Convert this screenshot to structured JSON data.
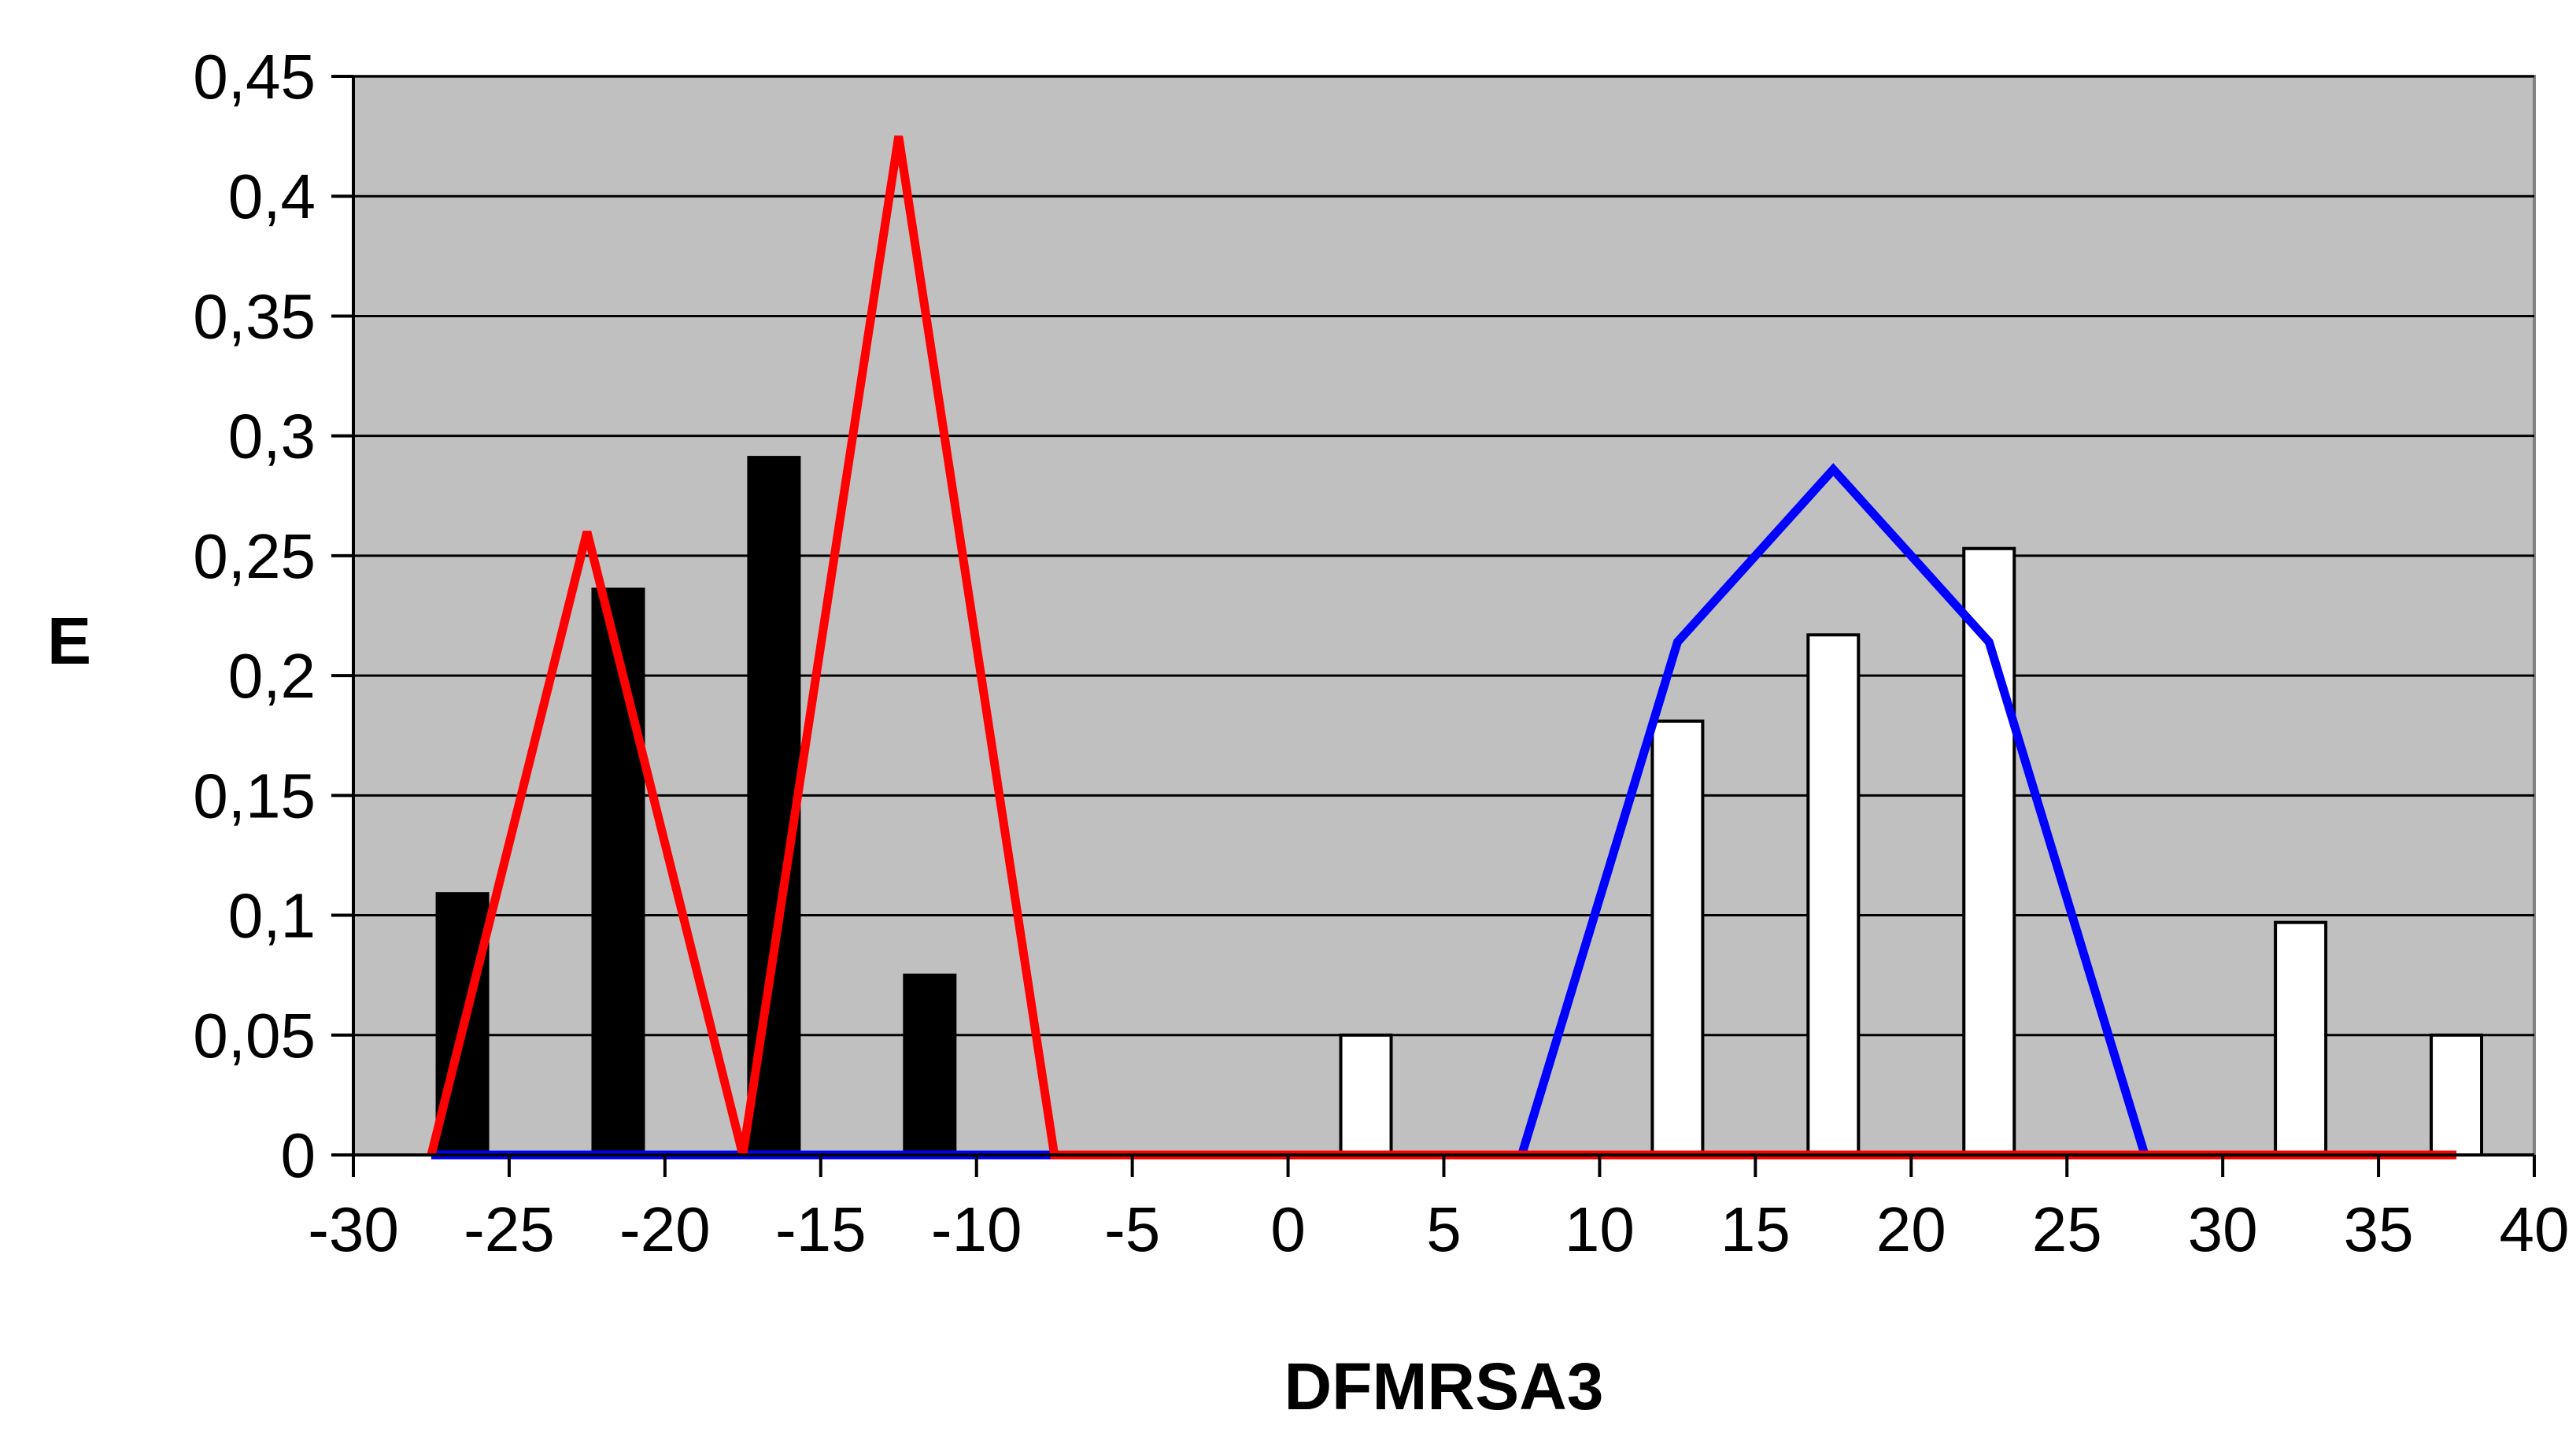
{
  "chart_data": {
    "type": "bar",
    "title": "",
    "xlabel": "DFMRSA3",
    "ylabel": "E",
    "xlim": [
      -30,
      40
    ],
    "ylim": [
      0,
      0.45
    ],
    "x_ticks": [
      -30,
      -25,
      -20,
      -15,
      -10,
      -5,
      0,
      5,
      10,
      15,
      20,
      25,
      30,
      35,
      40
    ],
    "x_tick_labels": [
      "-30",
      "-25",
      "-20",
      "-15",
      "-10",
      "-5",
      "0",
      "5",
      "10",
      "15",
      "20",
      "25",
      "30",
      "35",
      "40"
    ],
    "y_ticks": [
      0,
      0.05,
      0.1,
      0.15,
      0.2,
      0.25,
      0.3,
      0.35,
      0.4,
      0.45
    ],
    "y_tick_labels": [
      "0",
      "0,05",
      "0,1",
      "0,15",
      "0,2",
      "0,25",
      "0,3",
      "0,35",
      "0,4",
      "0,45"
    ],
    "grid": "horizontal",
    "plot_background": "#c0c0c0",
    "bar_series": [
      {
        "fill": "#000000",
        "x": [
          -26.5,
          -21.5,
          -16.5,
          -11.5
        ],
        "values": [
          0.109,
          0.236,
          0.291,
          0.075
        ]
      },
      {
        "fill": "#ffffff",
        "x": [
          2.5,
          12.5,
          17.5,
          22.5,
          32.5,
          37.5
        ],
        "values": [
          0.05,
          0.181,
          0.217,
          0.253,
          0.097,
          0.05
        ]
      }
    ],
    "line_series": [
      {
        "color": "#0000ff",
        "x": [
          -27.5,
          -7.5,
          7.5,
          12.5,
          17.5,
          22.5,
          27.5,
          37.5
        ],
        "y": [
          0,
          0,
          0,
          0.214,
          0.286,
          0.214,
          0,
          0
        ]
      },
      {
        "color": "#ff0000",
        "x": [
          -27.5,
          -22.5,
          -17.5,
          -12.5,
          -7.5,
          37.5
        ],
        "y": [
          0,
          0.26,
          0,
          0.425,
          0,
          0
        ]
      }
    ]
  }
}
